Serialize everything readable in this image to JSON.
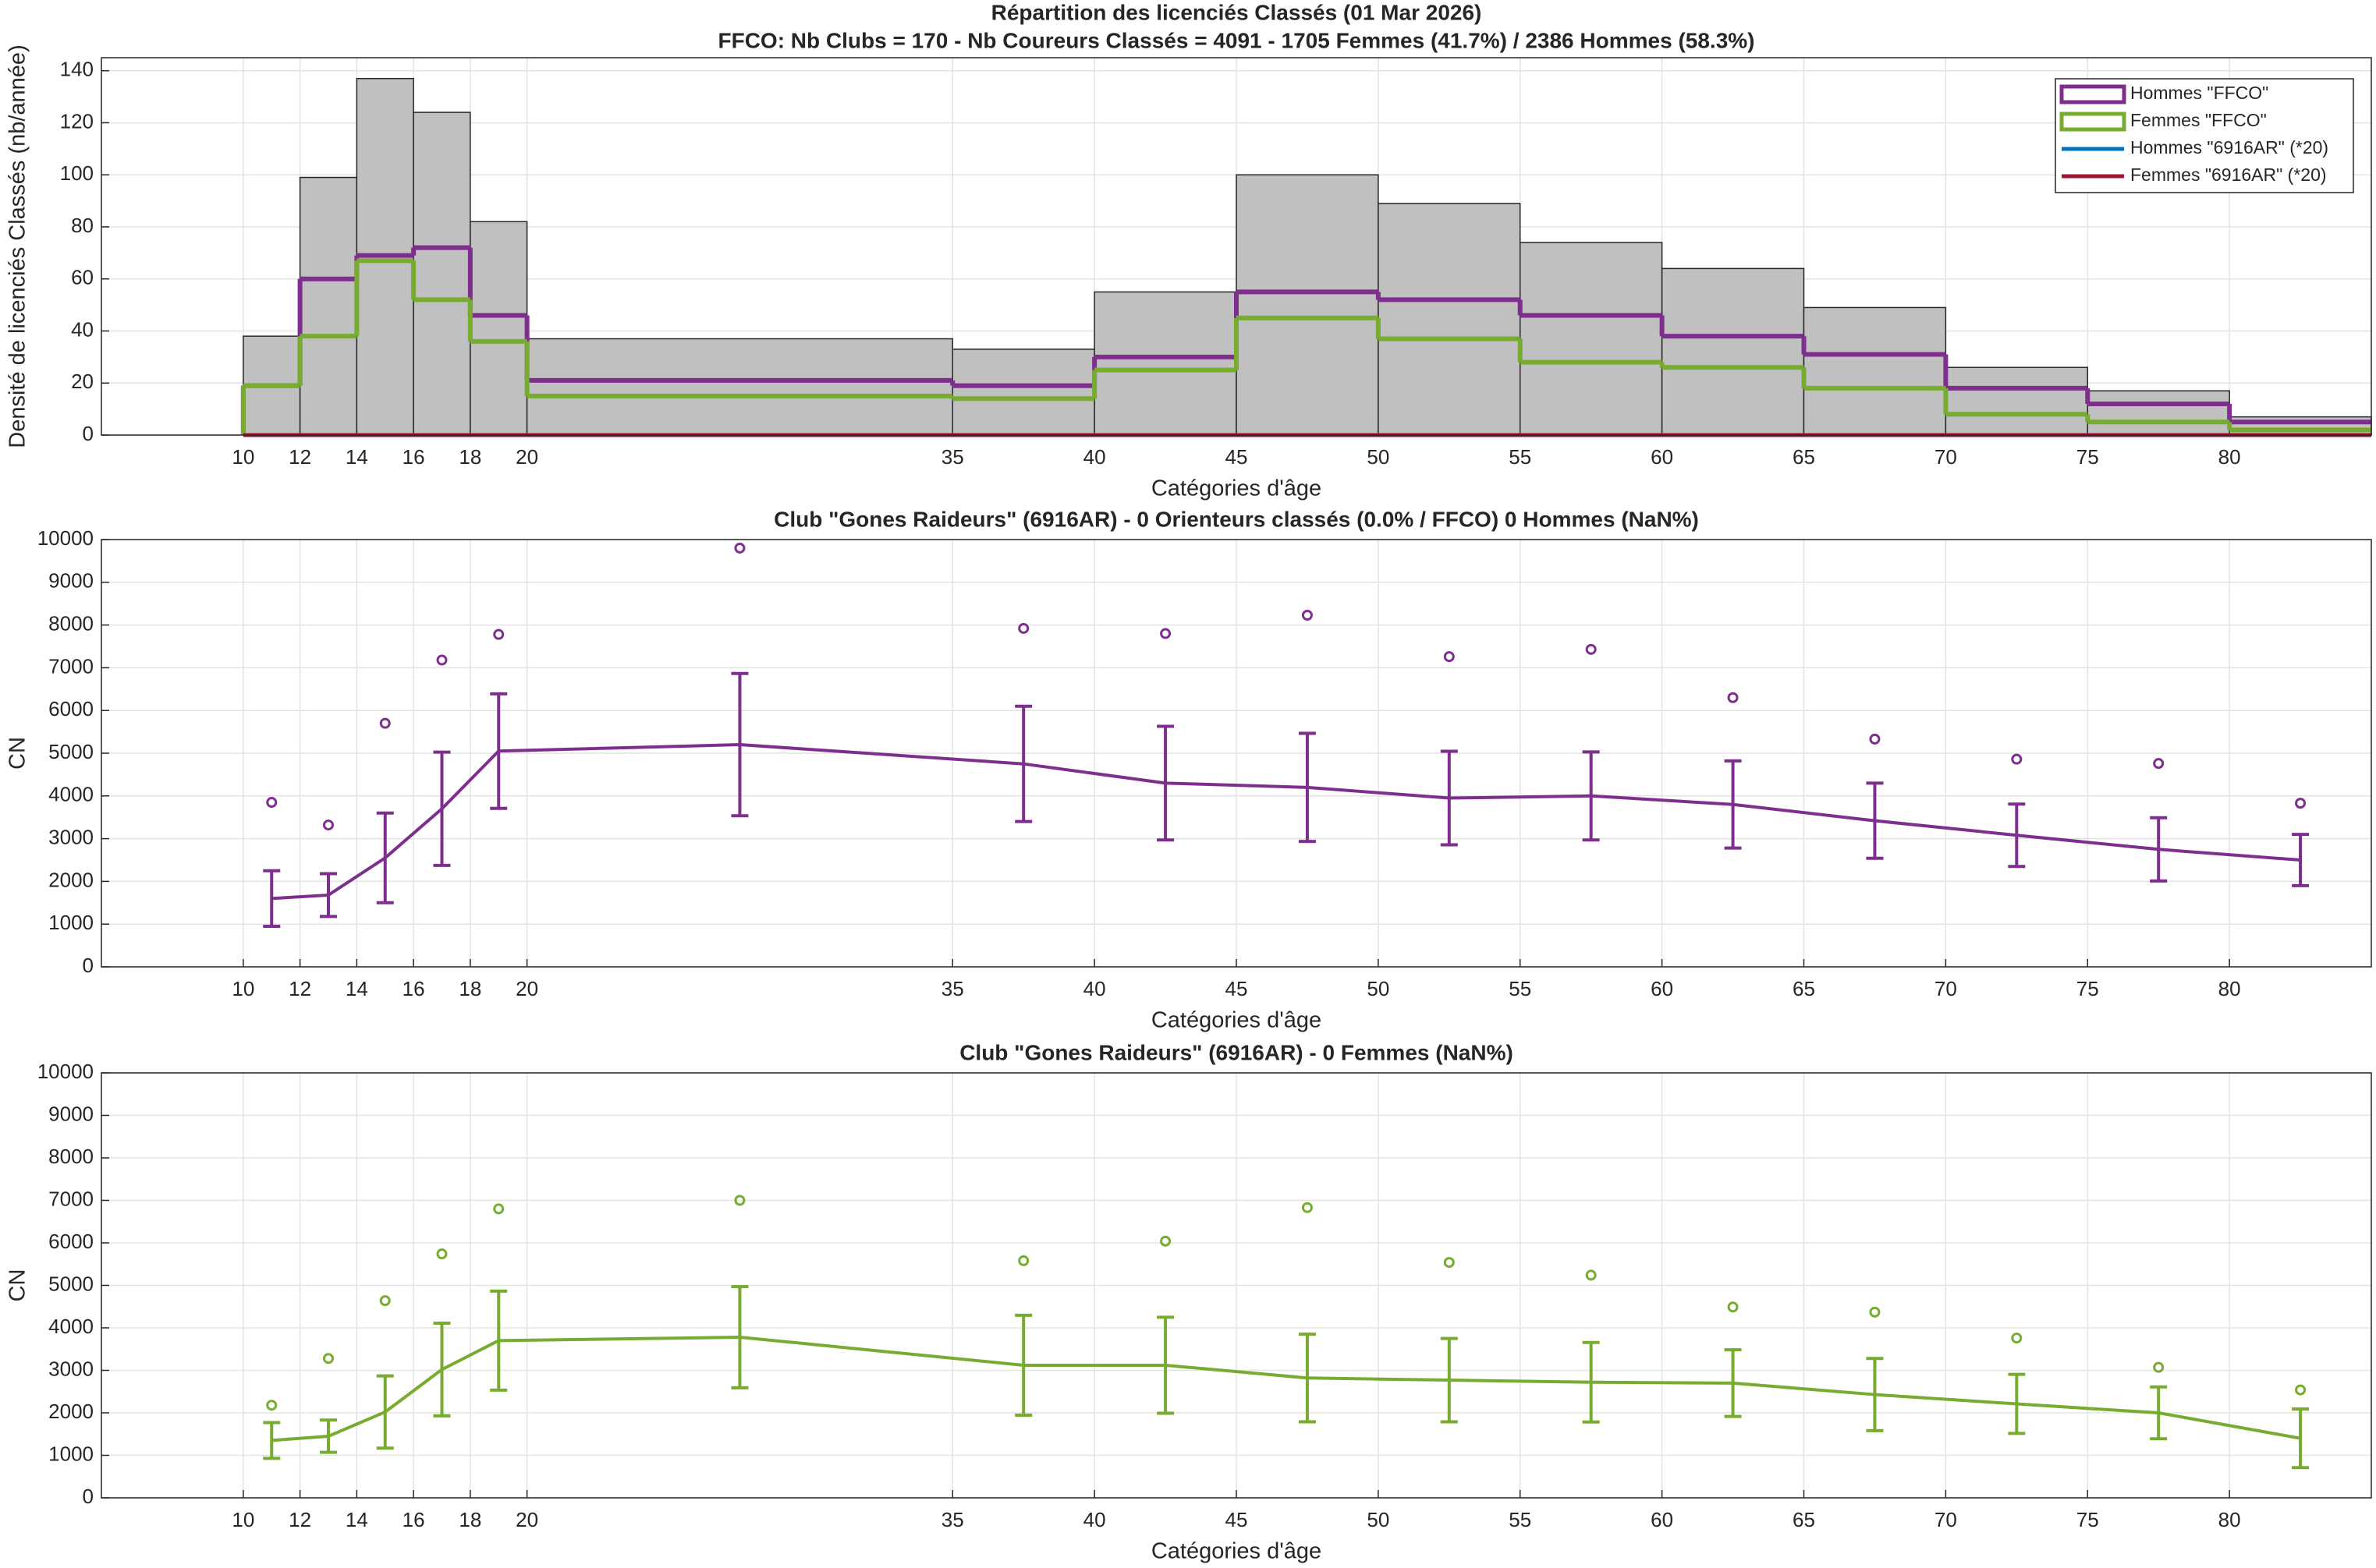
{
  "chart_data": [
    {
      "type": "histogram",
      "title": "Répartition des licenciés Classés (01 Mar 2026)",
      "subtitle": "FFCO: Nb Clubs = 170   -   Nb Coureurs Classés = 4091   -   1705 Femmes (41.7%) / 2386 Hommes (58.3%)",
      "x_label": "Catégories d'âge",
      "y_label": "Densité de licenciés Classés (nb/année)",
      "bins": [
        10,
        12,
        14,
        16,
        18,
        20,
        35,
        40,
        45,
        50,
        55,
        60,
        65,
        70,
        75,
        80,
        85
      ],
      "values": [
        38,
        99,
        137,
        124,
        82,
        37,
        33,
        55,
        100,
        89,
        74,
        64,
        49,
        26,
        17,
        7
      ],
      "color": "#c0c0c0",
      "series": [
        {
          "name": "Hommes \"FFCO\"",
          "color": "#7e2f8e",
          "values": [
            19,
            60,
            69,
            72,
            46,
            21,
            19,
            30,
            55,
            52,
            46,
            38,
            31,
            18,
            12,
            5
          ]
        },
        {
          "name": "Femmes \"FFCO\"",
          "color": "#77ac30",
          "values": [
            19,
            38,
            67,
            52,
            36,
            15,
            14,
            25,
            45,
            37,
            28,
            26,
            18,
            8,
            5,
            2
          ]
        },
        {
          "name": "Hommes \"6916AR\" (*20)",
          "color": "#0072bd",
          "values": [
            0,
            0,
            0,
            0,
            0,
            0,
            0,
            0,
            0,
            0,
            0,
            0,
            0,
            0,
            0,
            0
          ]
        },
        {
          "name": "Femmes \"6916AR\" (*20)",
          "color": "#a2142f",
          "values": [
            0,
            0,
            0,
            0,
            0,
            0,
            0,
            0,
            0,
            0,
            0,
            0,
            0,
            0,
            0,
            0
          ]
        }
      ],
      "xlim": [
        5,
        85
      ],
      "xticks": [
        10,
        12,
        14,
        16,
        18,
        20,
        35,
        40,
        45,
        50,
        55,
        60,
        65,
        70,
        75,
        80
      ],
      "ylim": [
        0,
        145
      ],
      "yticks": [
        0,
        20,
        40,
        60,
        80,
        100,
        120,
        140
      ],
      "grid": true,
      "legend": "upper right"
    },
    {
      "type": "errorbar",
      "title": "Club \"Gones Raideurs\" (6916AR)  -  0 Orienteurs classés (0.0% / FFCO)  0 Hommes (NaN%)",
      "x_label": "Catégories d'âge",
      "y_label": "CN",
      "x": [
        11,
        13,
        15,
        17,
        19,
        27.5,
        37.5,
        42.5,
        47.5,
        52.5,
        57.5,
        62.5,
        67.5,
        72.5,
        77.5,
        82.5
      ],
      "series": [
        {
          "color": "#7e2f8e",
          "values": [
            1600,
            1680,
            2550,
            3700,
            5050,
            5200,
            4750,
            4300,
            4200,
            3950,
            4000,
            3800,
            3420,
            3080,
            2750,
            2500
          ],
          "errors": [
            650,
            500,
            1050,
            1325,
            1340,
            1665,
            1350,
            1330,
            1265,
            1095,
            1030,
            1020,
            880,
            730,
            740,
            600
          ],
          "outliers": [
            3850,
            3320,
            5700,
            7180,
            7780,
            9800,
            7920,
            7800,
            8230,
            7260,
            7430,
            6300,
            5330,
            4860,
            4760,
            3830
          ]
        }
      ],
      "xlim": [
        5,
        85
      ],
      "xticks": [
        10,
        12,
        14,
        16,
        18,
        20,
        35,
        40,
        45,
        50,
        55,
        60,
        65,
        70,
        75,
        80
      ],
      "ylim": [
        0,
        10000
      ],
      "yticks": [
        0,
        1000,
        2000,
        3000,
        4000,
        5000,
        6000,
        7000,
        8000,
        9000,
        10000
      ],
      "grid": true
    },
    {
      "type": "errorbar",
      "title": "Club \"Gones Raideurs\" (6916AR)  -  0 Femmes (NaN%)",
      "x_label": "Catégories d'âge",
      "y_label": "CN",
      "x": [
        11,
        13,
        15,
        17,
        19,
        27.5,
        37.5,
        42.5,
        47.5,
        52.5,
        57.5,
        62.5,
        67.5,
        72.5,
        77.5,
        82.5
      ],
      "series": [
        {
          "color": "#77ac30",
          "values": [
            1350,
            1450,
            2020,
            3020,
            3700,
            3780,
            3120,
            3120,
            2820,
            2770,
            2720,
            2700,
            2430,
            2210,
            2000,
            1400
          ],
          "errors": [
            420,
            380,
            850,
            1090,
            1165,
            1190,
            1175,
            1130,
            1030,
            980,
            935,
            785,
            850,
            695,
            610,
            690
          ],
          "outliers": [
            2180,
            3280,
            4640,
            5740,
            6800,
            7000,
            5580,
            6040,
            6830,
            5540,
            5240,
            4490,
            4370,
            3760,
            3070,
            2540
          ]
        }
      ],
      "xlim": [
        5,
        85
      ],
      "xticks": [
        10,
        12,
        14,
        16,
        18,
        20,
        35,
        40,
        45,
        50,
        55,
        60,
        65,
        70,
        75,
        80
      ],
      "ylim": [
        0,
        10000
      ],
      "yticks": [
        0,
        1000,
        2000,
        3000,
        4000,
        5000,
        6000,
        7000,
        8000,
        9000,
        10000
      ],
      "grid": true
    }
  ]
}
